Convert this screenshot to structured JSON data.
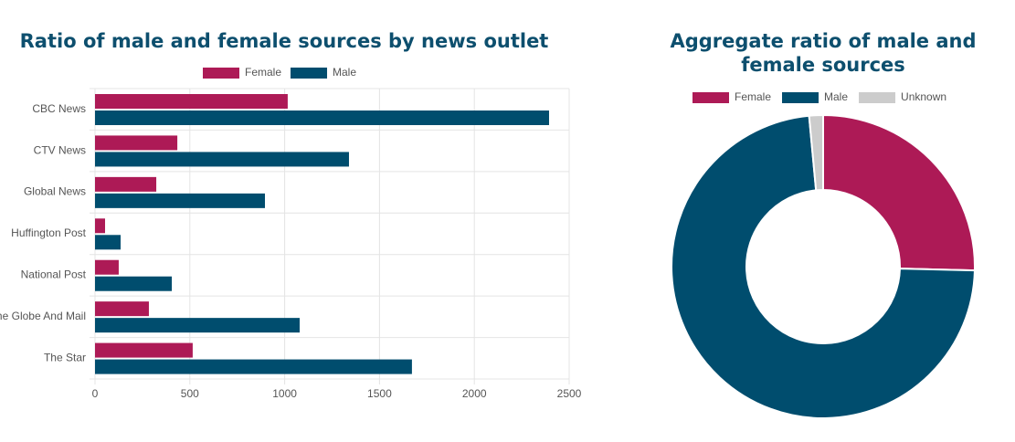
{
  "chart_data": [
    {
      "type": "bar",
      "orientation": "horizontal",
      "title": "Ratio of male and female sources by news outlet",
      "categories": [
        "CBC News",
        "CTV News",
        "Global News",
        "Huffington Post",
        "National Post",
        "The Globe And Mail",
        "The Star"
      ],
      "series": [
        {
          "name": "Female",
          "color": "#ad1a56",
          "values": [
            1016,
            434,
            323,
            53,
            125,
            284,
            515
          ]
        },
        {
          "name": "Male",
          "color": "#004d6e",
          "values": [
            2394,
            1339,
            896,
            135,
            405,
            1079,
            1671
          ]
        }
      ],
      "xlim": [
        0,
        2500
      ],
      "xticks": [
        0,
        500,
        1000,
        1500,
        2000,
        2500
      ],
      "grid": true,
      "legend": "top"
    },
    {
      "type": "doughnut",
      "title": "Aggregate ratio of male and female sources",
      "categories": [
        "Female",
        "Male",
        "Unknown"
      ],
      "values": [
        2750,
        7919,
        160
      ],
      "colors": [
        "#ad1a56",
        "#004d6e",
        "#cccccc"
      ],
      "legend": "top"
    }
  ]
}
